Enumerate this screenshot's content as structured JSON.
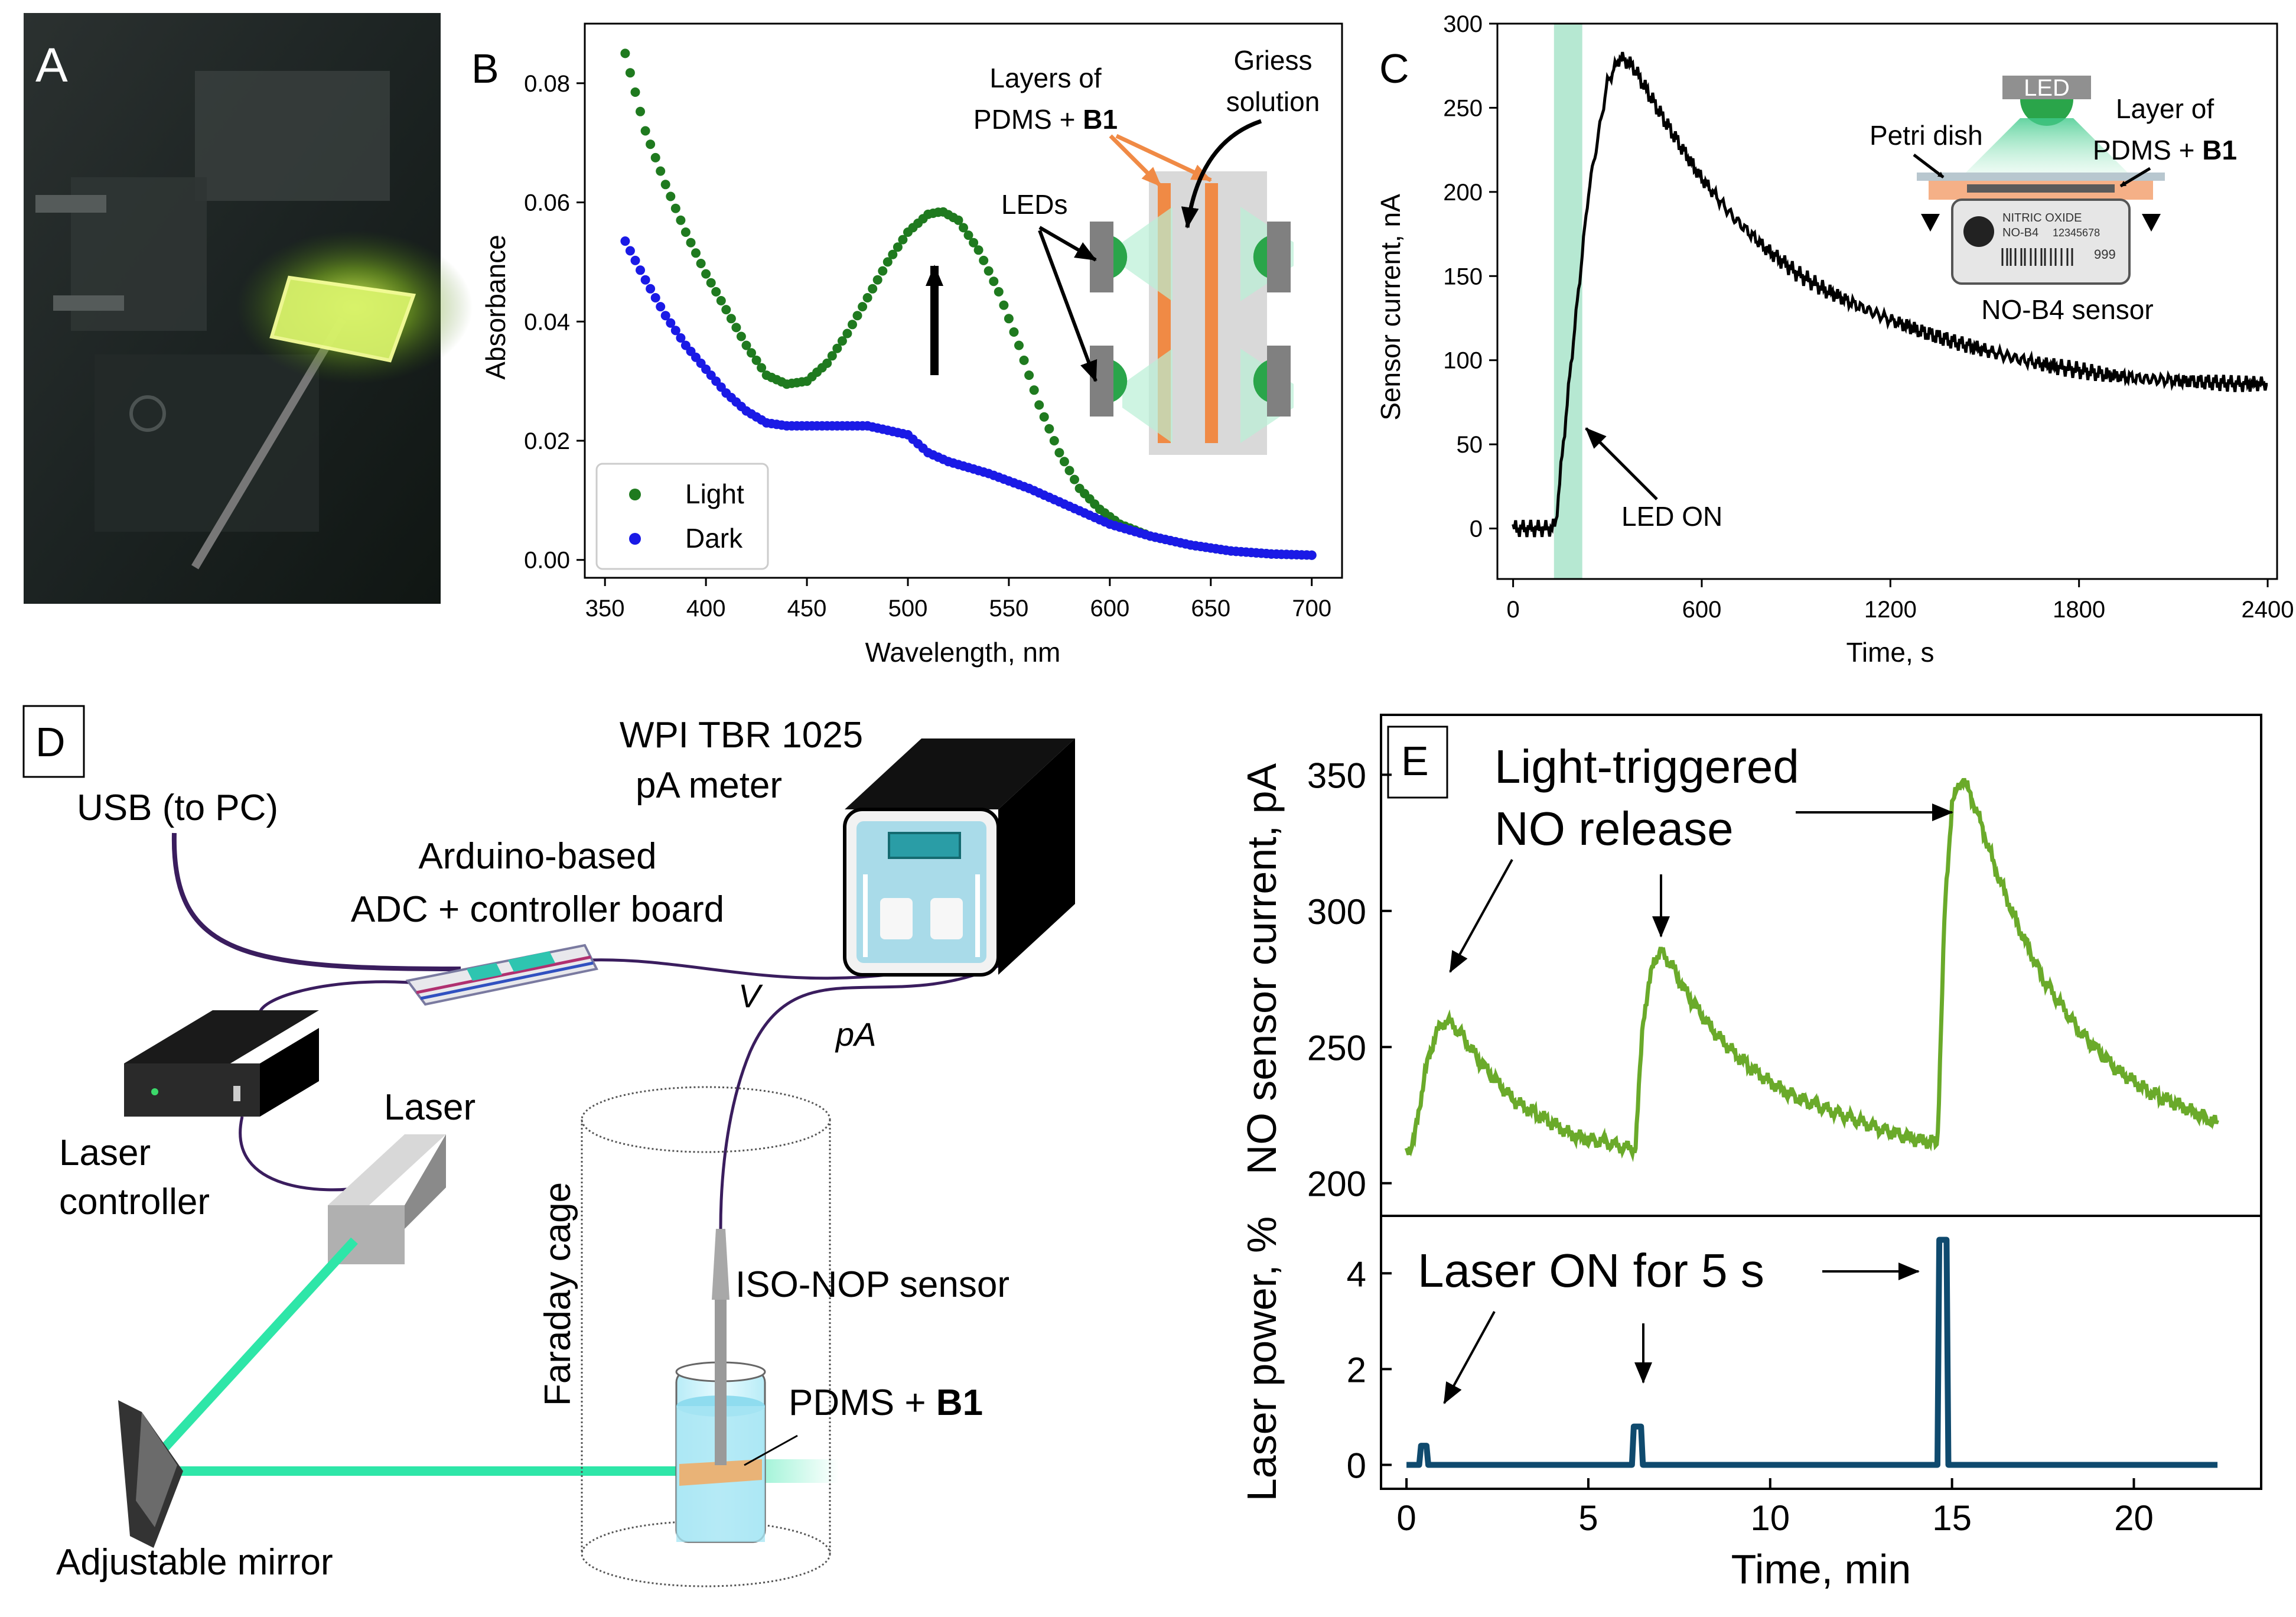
{
  "panels": {
    "A": {
      "label": "A"
    },
    "B": {
      "label": "B"
    },
    "C": {
      "label": "C"
    },
    "D": {
      "label": "D"
    },
    "E": {
      "label": "E"
    }
  },
  "colors": {
    "light": "#1f7a1f",
    "dark": "#1a1ae6",
    "green_trace": "#6aaa2a",
    "navy": "#0f4a6e",
    "orange": "#f08a45",
    "beam": "#2ee6a8"
  },
  "chart_data": [
    {
      "id": "B",
      "type": "scatter",
      "title": "",
      "xlabel": "Wavelength, nm",
      "ylabel": "Absorbance",
      "xlim": [
        340,
        715
      ],
      "ylim": [
        -0.003,
        0.09
      ],
      "xticks": [
        350,
        400,
        450,
        500,
        550,
        600,
        650,
        700
      ],
      "yticks": [
        0.0,
        0.02,
        0.04,
        0.06,
        0.08
      ],
      "ytick_labels": [
        "0.00",
        "0.02",
        "0.04",
        "0.06",
        "0.08"
      ],
      "legend_position": "bottom-left",
      "series": [
        {
          "name": "Light",
          "color": "#1f7a1f",
          "x": [
            360,
            370,
            380,
            390,
            400,
            410,
            420,
            430,
            440,
            450,
            460,
            470,
            480,
            490,
            500,
            510,
            517,
            525,
            535,
            545,
            555,
            565,
            575,
            585,
            595,
            605,
            620,
            640,
            660,
            680,
            700
          ],
          "y": [
            0.085,
            0.072,
            0.063,
            0.055,
            0.048,
            0.042,
            0.036,
            0.031,
            0.0295,
            0.03,
            0.033,
            0.038,
            0.044,
            0.05,
            0.055,
            0.058,
            0.0585,
            0.057,
            0.052,
            0.045,
            0.036,
            0.026,
            0.018,
            0.012,
            0.0085,
            0.006,
            0.004,
            0.0025,
            0.0015,
            0.001,
            0.0008
          ]
        },
        {
          "name": "Dark",
          "color": "#1a1ae6",
          "x": [
            360,
            370,
            380,
            390,
            400,
            410,
            420,
            430,
            440,
            450,
            460,
            480,
            500,
            510,
            520,
            540,
            560,
            580,
            600,
            620,
            640,
            660,
            680,
            700
          ],
          "y": [
            0.0535,
            0.047,
            0.041,
            0.036,
            0.032,
            0.028,
            0.025,
            0.023,
            0.0225,
            0.0225,
            0.0225,
            0.0225,
            0.021,
            0.018,
            0.0165,
            0.0145,
            0.012,
            0.009,
            0.006,
            0.004,
            0.0025,
            0.0015,
            0.001,
            0.0008
          ]
        }
      ],
      "annotations": {
        "layers_line1": "Layers of",
        "layers_line2": "PDMS + ",
        "layers_bold": "B1",
        "griess_line1": "Griess",
        "griess_line2": "solution",
        "leds": "LEDs"
      }
    },
    {
      "id": "C",
      "type": "line",
      "title": "",
      "xlabel": "Time, s",
      "ylabel": "Sensor current, nA",
      "xlim": [
        -50,
        2430
      ],
      "ylim": [
        -30,
        300
      ],
      "xticks": [
        0,
        600,
        1200,
        1800,
        2400
      ],
      "yticks": [
        0,
        50,
        100,
        150,
        200,
        250,
        300
      ],
      "highlight_band": [
        130,
        220
      ],
      "series": [
        {
          "name": "Sensor current",
          "color": "#000000",
          "x": [
            0,
            60,
            120,
            135,
            180,
            240,
            300,
            340,
            380,
            420,
            480,
            540,
            600,
            700,
            800,
            900,
            1000,
            1100,
            1200,
            1300,
            1400,
            1500,
            1600,
            1700,
            1800,
            1900,
            2000,
            2100,
            2200,
            2300,
            2400
          ],
          "y": [
            0,
            0,
            0,
            2,
            90,
            200,
            265,
            280,
            275,
            262,
            243,
            225,
            208,
            185,
            167,
            152,
            141,
            132,
            124,
            117,
            111,
            106,
            101,
            97,
            94,
            91,
            89,
            88,
            87,
            86,
            86
          ]
        }
      ],
      "annotations": {
        "led_on": "LED ON",
        "led": "LED",
        "petri": "Petri dish",
        "layer_line1": "Layer of",
        "layer_line2": "PDMS + ",
        "layer_bold": "B1",
        "sensor": "NO-B4 sensor",
        "sensor_text1": "NITRIC OXIDE",
        "sensor_text2": "NO-B4",
        "sensor_text3": "12345678",
        "sensor_text4": "999"
      }
    },
    {
      "id": "E-top",
      "type": "line",
      "title": "",
      "xlabel": "",
      "ylabel": "NO sensor current, pA",
      "xlim": [
        -0.7,
        23.5
      ],
      "ylim": [
        188,
        372
      ],
      "yticks": [
        200,
        250,
        300,
        350
      ],
      "series": [
        {
          "name": "NO sensor current",
          "color": "#6aaa2a",
          "x": [
            0,
            0.2,
            0.5,
            0.8,
            1.1,
            1.5,
            2.0,
            2.5,
            3.0,
            3.5,
            4.0,
            4.5,
            5.0,
            5.5,
            6.0,
            6.3,
            6.5,
            6.8,
            7.0,
            7.3,
            7.6,
            8.0,
            8.5,
            9.0,
            9.5,
            10.0,
            10.5,
            11.0,
            12.0,
            13.0,
            14.0,
            14.6,
            14.8,
            15.0,
            15.3,
            15.7,
            16.2,
            16.8,
            17.5,
            18.5,
            19.5,
            20.5,
            21.5,
            22.3
          ],
          "y": [
            212,
            215,
            240,
            255,
            260,
            255,
            245,
            237,
            230,
            226,
            222,
            218,
            216,
            215,
            213,
            213,
            260,
            282,
            285,
            280,
            272,
            264,
            255,
            248,
            242,
            237,
            233,
            230,
            225,
            220,
            216,
            215,
            300,
            340,
            349,
            336,
            315,
            295,
            275,
            256,
            242,
            233,
            227,
            222
          ]
        }
      ],
      "annotations": {
        "line1": "Light-triggered",
        "line2": "NO release"
      }
    },
    {
      "id": "E-bottom",
      "type": "line",
      "title": "",
      "xlabel": "Time, min",
      "ylabel": "Laser power, %",
      "xlim": [
        -0.7,
        23.5
      ],
      "ylim": [
        -0.5,
        5.2
      ],
      "xticks": [
        0,
        5,
        10,
        15,
        20
      ],
      "yticks": [
        0,
        2,
        4
      ],
      "series": [
        {
          "name": "Laser power",
          "color": "#0f4a6e",
          "x": [
            0,
            0.35,
            0.4,
            0.55,
            0.6,
            6.2,
            6.25,
            6.45,
            6.5,
            14.6,
            14.65,
            14.85,
            14.9,
            22.3
          ],
          "y": [
            0,
            0,
            0.4,
            0.4,
            0,
            0,
            0.8,
            0.8,
            0,
            0,
            4.7,
            4.7,
            0,
            0
          ]
        }
      ],
      "annotations": {
        "text": "Laser ON for 5 s"
      }
    }
  ],
  "setup_D": {
    "usb": "USB (to PC)",
    "arduino_line1": "Arduino-based",
    "arduino_line2": "ADC + controller board",
    "meter_line1": "WPI TBR 1025",
    "meter_line2": "pA meter",
    "wire_v": "V",
    "wire_pa": "pA",
    "laser": "Laser",
    "controller_line1": "Laser",
    "controller_line2": "controller",
    "faraday": "Faraday cage",
    "sensor": "ISO-NOP sensor",
    "sample": "PDMS + ",
    "sample_bold": "B1",
    "mirror": "Adjustable mirror"
  }
}
